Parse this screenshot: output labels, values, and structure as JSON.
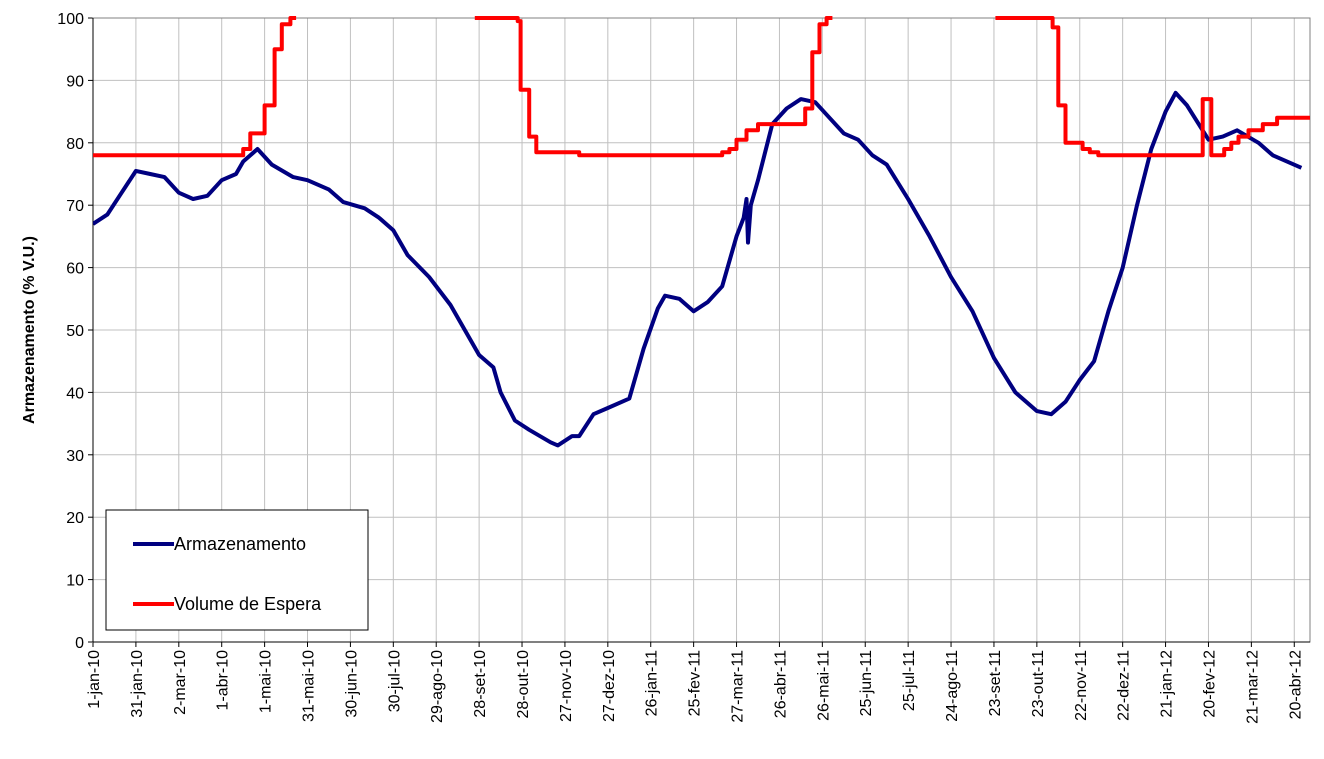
{
  "chart_data": {
    "type": "line",
    "y_label": "Armazenamento (% V.U.)",
    "ylim": [
      0,
      100
    ],
    "yticks": [
      0,
      10,
      20,
      30,
      40,
      50,
      60,
      70,
      80,
      90,
      100
    ],
    "xlim": [
      "2010-01-01",
      "2012-05-01"
    ],
    "xticks": [
      {
        "value": "2010-01-01",
        "label": "1-jan-10"
      },
      {
        "value": "2010-01-31",
        "label": "31-jan-10"
      },
      {
        "value": "2010-03-02",
        "label": "2-mar-10"
      },
      {
        "value": "2010-04-01",
        "label": "1-abr-10"
      },
      {
        "value": "2010-05-01",
        "label": "1-mai-10"
      },
      {
        "value": "2010-05-31",
        "label": "31-mai-10"
      },
      {
        "value": "2010-06-30",
        "label": "30-jun-10"
      },
      {
        "value": "2010-07-30",
        "label": "30-jul-10"
      },
      {
        "value": "2010-08-29",
        "label": "29-ago-10"
      },
      {
        "value": "2010-09-28",
        "label": "28-set-10"
      },
      {
        "value": "2010-10-28",
        "label": "28-out-10"
      },
      {
        "value": "2010-11-27",
        "label": "27-nov-10"
      },
      {
        "value": "2010-12-27",
        "label": "27-dez-10"
      },
      {
        "value": "2011-01-26",
        "label": "26-jan-11"
      },
      {
        "value": "2011-02-25",
        "label": "25-fev-11"
      },
      {
        "value": "2011-03-27",
        "label": "27-mar-11"
      },
      {
        "value": "2011-04-26",
        "label": "26-abr-11"
      },
      {
        "value": "2011-05-26",
        "label": "26-mai-11"
      },
      {
        "value": "2011-06-25",
        "label": "25-jun-11"
      },
      {
        "value": "2011-07-25",
        "label": "25-jul-11"
      },
      {
        "value": "2011-08-24",
        "label": "24-ago-11"
      },
      {
        "value": "2011-09-23",
        "label": "23-set-11"
      },
      {
        "value": "2011-10-23",
        "label": "23-out-11"
      },
      {
        "value": "2011-11-22",
        "label": "22-nov-11"
      },
      {
        "value": "2011-12-22",
        "label": "22-dez-11"
      },
      {
        "value": "2012-01-21",
        "label": "21-jan-12"
      },
      {
        "value": "2012-02-20",
        "label": "20-fev-12"
      },
      {
        "value": "2012-03-21",
        "label": "21-mar-12"
      },
      {
        "value": "2012-04-20",
        "label": "20-abr-12"
      }
    ],
    "grid": true,
    "legend": "bottom-left",
    "series": [
      {
        "name": "Armazenamento",
        "color": "#000080",
        "x": [
          "2010-01-01",
          "2010-01-11",
          "2010-01-21",
          "2010-01-31",
          "2010-02-10",
          "2010-02-20",
          "2010-03-02",
          "2010-03-12",
          "2010-03-22",
          "2010-04-01",
          "2010-04-11",
          "2010-04-16",
          "2010-04-26",
          "2010-05-06",
          "2010-05-21",
          "2010-05-31",
          "2010-06-15",
          "2010-06-25",
          "2010-07-10",
          "2010-07-20",
          "2010-07-30",
          "2010-08-09",
          "2010-08-24",
          "2010-09-08",
          "2010-09-18",
          "2010-09-28",
          "2010-10-08",
          "2010-10-13",
          "2010-10-23",
          "2010-11-02",
          "2010-11-17",
          "2010-11-22",
          "2010-12-02",
          "2010-12-07",
          "2010-12-17",
          "2010-12-27",
          "2011-01-11",
          "2011-01-21",
          "2011-01-31",
          "2011-02-05",
          "2011-02-15",
          "2011-02-25",
          "2011-03-07",
          "2011-03-17",
          "2011-03-27",
          "2011-04-01",
          "2011-04-03",
          "2011-04-04",
          "2011-04-06",
          "2011-04-11",
          "2011-04-21",
          "2011-05-01",
          "2011-05-11",
          "2011-05-21",
          "2011-05-31",
          "2011-06-10",
          "2011-06-20",
          "2011-06-30",
          "2011-07-10",
          "2011-07-25",
          "2011-08-09",
          "2011-08-24",
          "2011-09-08",
          "2011-09-23",
          "2011-10-08",
          "2011-10-23",
          "2011-11-02",
          "2011-11-12",
          "2011-11-22",
          "2011-12-02",
          "2011-12-12",
          "2011-12-22",
          "2012-01-01",
          "2012-01-11",
          "2012-01-21",
          "2012-01-28",
          "2012-02-05",
          "2012-02-20",
          "2012-03-01",
          "2012-03-11",
          "2012-03-26",
          "2012-04-05",
          "2012-04-25"
        ],
        "values": [
          67,
          68.5,
          72,
          75.5,
          75,
          74.5,
          72,
          71,
          71.5,
          74,
          75,
          77,
          79,
          76.5,
          74.5,
          74,
          72.5,
          70.5,
          69.5,
          68,
          66,
          62,
          58.5,
          54,
          50,
          46,
          44,
          40,
          35.5,
          34,
          32,
          31.5,
          33,
          33,
          36.5,
          37.5,
          39,
          47,
          53.5,
          55.5,
          55,
          53,
          54.5,
          57,
          65,
          68,
          71,
          64,
          70,
          74,
          83,
          85.5,
          87,
          86.5,
          84,
          81.5,
          80.5,
          78,
          76.5,
          71,
          65,
          58.5,
          53,
          45.5,
          40,
          37,
          36.5,
          38.5,
          42,
          45,
          53,
          60,
          70,
          79,
          85,
          88,
          86,
          80.5,
          81,
          82,
          80,
          78,
          76
        ]
      },
      {
        "name": "Volume de Espera",
        "color": "#ff0000",
        "x": [
          "2010-01-01",
          "2010-04-16",
          "2010-04-16",
          "2010-04-21",
          "2010-04-21",
          "2010-05-01",
          "2010-05-01",
          "2010-05-08",
          "2010-05-08",
          "2010-05-13",
          "2010-05-13",
          "2010-05-19",
          "2010-05-19",
          "2010-05-23",
          null,
          "2010-09-25",
          "2010-10-25",
          "2010-10-25",
          "2010-10-27",
          "2010-10-27",
          "2010-11-02",
          "2010-11-02",
          "2010-11-07",
          "2010-11-07",
          "2010-12-07",
          "2010-12-07",
          "2011-03-17",
          "2011-03-17",
          "2011-03-22",
          "2011-03-22",
          "2011-03-27",
          "2011-03-27",
          "2011-04-03",
          "2011-04-03",
          "2011-04-11",
          "2011-04-11",
          "2011-05-14",
          "2011-05-14",
          "2011-05-19",
          "2011-05-19",
          "2011-05-24",
          "2011-05-24",
          "2011-05-29",
          "2011-05-29",
          "2011-06-02",
          null,
          "2011-09-24",
          "2011-11-03",
          "2011-11-03",
          "2011-11-07",
          "2011-11-07",
          "2011-11-12",
          "2011-11-12",
          "2011-11-24",
          "2011-11-24",
          "2011-11-29",
          "2011-11-29",
          "2011-12-05",
          "2011-12-05",
          "2012-02-16",
          "2012-02-16",
          "2012-02-22",
          "2012-02-22",
          "2012-03-02",
          "2012-03-02",
          "2012-03-07",
          "2012-03-07",
          "2012-03-12",
          "2012-03-12",
          "2012-03-19",
          "2012-03-19",
          "2012-03-29",
          "2012-03-29",
          "2012-04-08",
          "2012-04-08",
          "2012-05-01"
        ],
        "values": [
          78,
          78,
          79,
          79,
          81.5,
          81.5,
          86,
          86,
          95,
          95,
          99,
          99,
          100,
          100,
          null,
          100,
          100,
          99.5,
          99.5,
          88.5,
          88.5,
          81,
          81,
          78.5,
          78.5,
          78,
          78,
          78.5,
          78.5,
          79,
          79,
          80.5,
          80.5,
          82,
          82,
          83,
          83,
          85.5,
          85.5,
          94.5,
          94.5,
          99,
          99,
          100,
          100,
          null,
          100,
          100,
          98.5,
          98.5,
          86,
          86,
          80,
          80,
          79,
          79,
          78.5,
          78.5,
          78,
          78,
          87,
          87,
          78,
          78,
          79,
          79,
          80,
          80,
          81,
          81,
          82,
          82,
          83,
          83,
          84,
          84
        ]
      }
    ]
  }
}
